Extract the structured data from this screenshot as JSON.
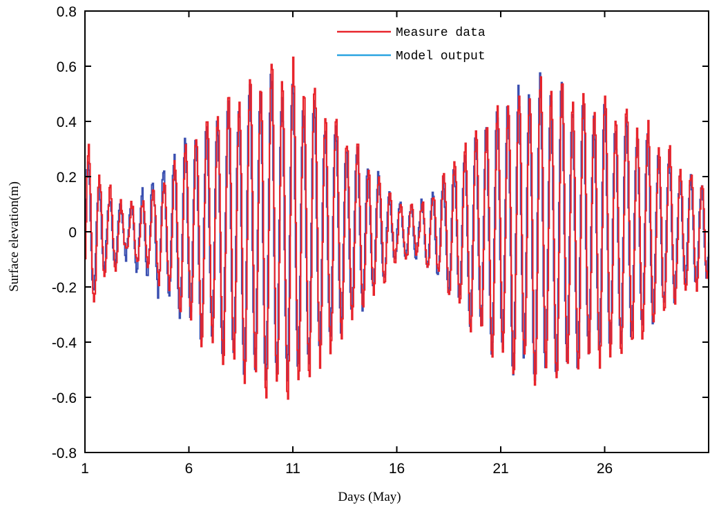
{
  "chart_data": {
    "type": "line",
    "xlabel": "Days (May)",
    "ylabel": "Surface elevation(m)",
    "xlim": [
      1,
      31
    ],
    "ylim": [
      -0.8,
      0.8
    ],
    "x_ticks": [
      1,
      6,
      11,
      16,
      21,
      26
    ],
    "y_ticks": [
      -0.8,
      -0.6,
      -0.4,
      -0.2,
      0,
      0.2,
      0.4,
      0.6,
      0.8
    ],
    "y_tick_labels": [
      "-0.8",
      "-0.6",
      "-0.4",
      "-0.2",
      "0",
      "0.2",
      "0.4",
      "0.6",
      "0.8"
    ],
    "grid": false,
    "legend_position": "top-center",
    "series": [
      {
        "name": "Measure data",
        "color": "#e8242b",
        "envelope_x": [
          1,
          2,
          3,
          4,
          5,
          6,
          7,
          8,
          9,
          10,
          11,
          12,
          13,
          14,
          15,
          16,
          17,
          18,
          19,
          20,
          21,
          22,
          23,
          24,
          25,
          26,
          27,
          28,
          29,
          30,
          31
        ],
        "envelope_amplitude": [
          0.38,
          0.2,
          0.1,
          0.15,
          0.25,
          0.4,
          0.5,
          0.58,
          0.65,
          0.72,
          0.7,
          0.62,
          0.5,
          0.38,
          0.25,
          0.12,
          0.1,
          0.2,
          0.35,
          0.45,
          0.55,
          0.6,
          0.65,
          0.62,
          0.58,
          0.56,
          0.52,
          0.45,
          0.35,
          0.25,
          0.22
        ]
      },
      {
        "name": "Model output",
        "color": "#3a4fb0",
        "legend_color": "#29a3e0",
        "envelope_x": [
          1,
          2,
          3,
          4,
          5,
          6,
          7,
          8,
          9,
          10,
          11,
          12,
          13,
          14,
          15,
          16,
          17,
          18,
          19,
          20,
          21,
          22,
          23,
          24,
          25,
          26,
          27,
          28,
          29,
          30,
          31
        ],
        "envelope_amplitude": [
          0.33,
          0.15,
          0.12,
          0.2,
          0.3,
          0.42,
          0.48,
          0.55,
          0.62,
          0.66,
          0.62,
          0.55,
          0.45,
          0.35,
          0.25,
          0.12,
          0.12,
          0.2,
          0.32,
          0.44,
          0.55,
          0.62,
          0.66,
          0.6,
          0.55,
          0.52,
          0.48,
          0.42,
          0.32,
          0.22,
          0.2
        ]
      }
    ],
    "tidal_period_days": 0.5175
  }
}
